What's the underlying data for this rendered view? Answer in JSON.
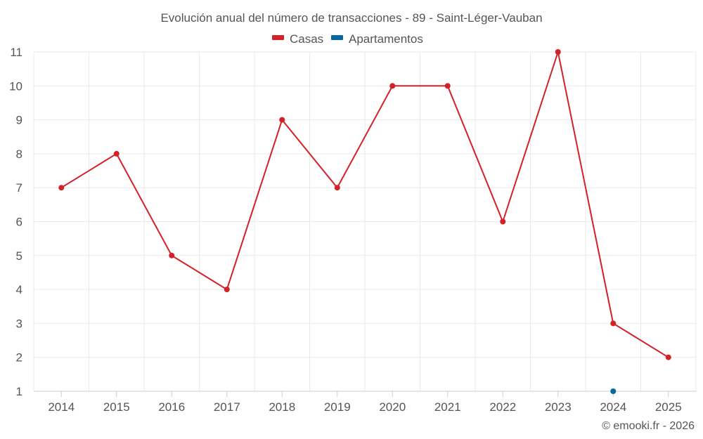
{
  "chart_data": {
    "type": "line",
    "title": "Evolución anual del número de transacciones - 89 - Saint-Léger-Vauban",
    "categories": [
      "2014",
      "2015",
      "2016",
      "2017",
      "2018",
      "2019",
      "2020",
      "2021",
      "2022",
      "2023",
      "2024",
      "2025"
    ],
    "ylim": [
      1,
      11
    ],
    "yticks": [
      "1",
      "2",
      "3",
      "4",
      "5",
      "6",
      "7",
      "8",
      "9",
      "10",
      "11"
    ],
    "grid": true,
    "legend_position": "top-center",
    "series": [
      {
        "name": "Casas",
        "color": "#d42027",
        "values": [
          7,
          8,
          5,
          4,
          9,
          7,
          10,
          10,
          6,
          11,
          3,
          2
        ]
      },
      {
        "name": "Apartamentos",
        "color": "#08679e",
        "values": [
          null,
          null,
          null,
          null,
          null,
          null,
          null,
          null,
          null,
          null,
          1,
          null
        ]
      }
    ]
  },
  "credit": "© emooki.fr - 2026"
}
